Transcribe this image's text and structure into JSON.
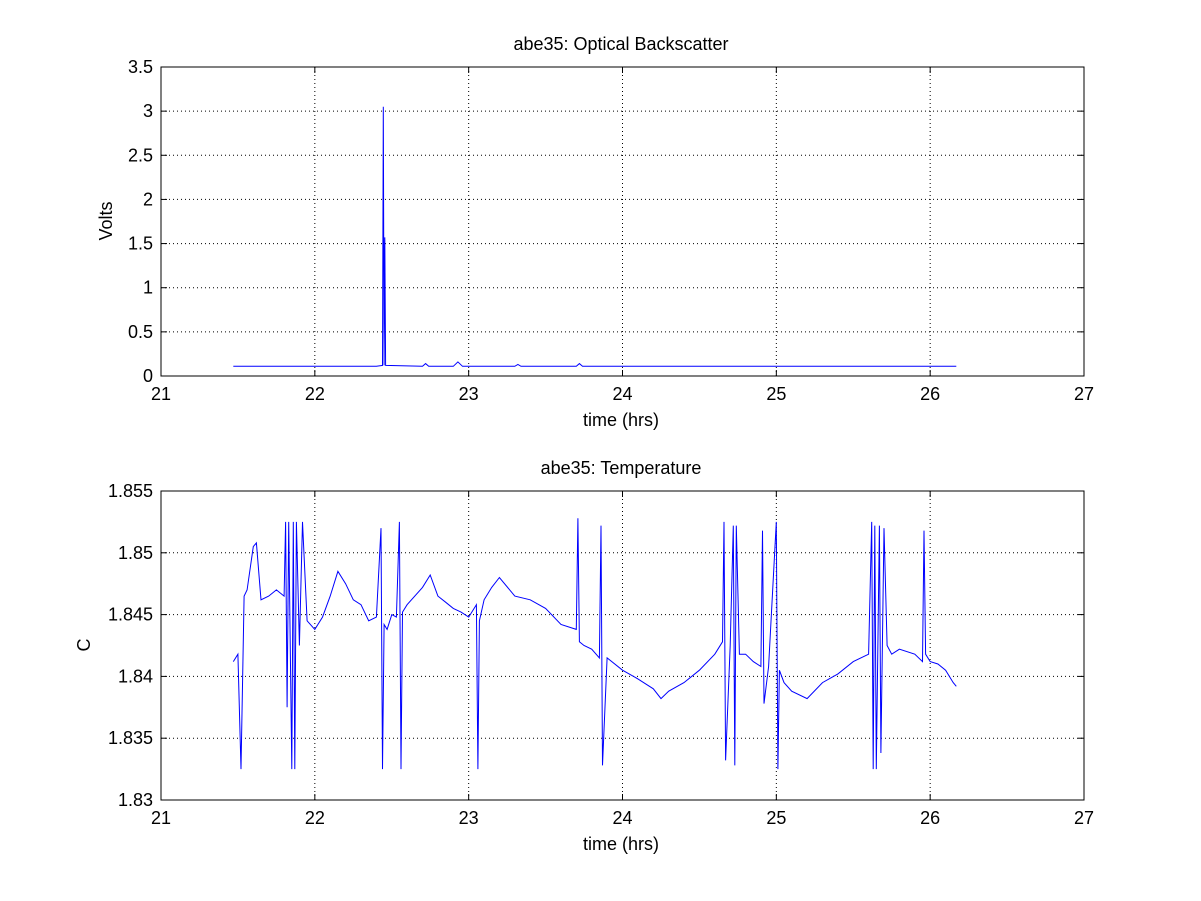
{
  "chart_data": [
    {
      "type": "line",
      "title": "abe35: Optical Backscatter",
      "xlabel": "time (hrs)",
      "ylabel": "Volts",
      "xlim": [
        21,
        27
      ],
      "ylim": [
        0,
        3.5
      ],
      "xticks": [
        "21",
        "22",
        "23",
        "24",
        "25",
        "26",
        "27"
      ],
      "yticks": [
        "0",
        "0.5",
        "1",
        "1.5",
        "2",
        "2.5",
        "3",
        "3.5"
      ],
      "grid": true,
      "line_color": "#0000ff",
      "series": [
        {
          "x": [
            21.47,
            21.8,
            22.1,
            22.4,
            22.44,
            22.445,
            22.45,
            22.455,
            22.46,
            22.7,
            22.72,
            22.74,
            22.9,
            22.93,
            22.96,
            23.3,
            23.32,
            23.34,
            23.7,
            23.72,
            23.74,
            24.2,
            24.7,
            25.2,
            25.7,
            26.17
          ],
          "y": [
            0.11,
            0.11,
            0.11,
            0.11,
            0.12,
            3.05,
            0.12,
            1.57,
            0.12,
            0.11,
            0.14,
            0.11,
            0.11,
            0.16,
            0.11,
            0.11,
            0.13,
            0.11,
            0.11,
            0.14,
            0.11,
            0.11,
            0.11,
            0.11,
            0.11,
            0.11
          ]
        }
      ]
    },
    {
      "type": "line",
      "title": "abe35: Temperature",
      "xlabel": "time (hrs)",
      "ylabel": "C",
      "xlim": [
        21,
        27
      ],
      "ylim": [
        1.83,
        1.855
      ],
      "xticks": [
        "21",
        "22",
        "23",
        "24",
        "25",
        "26",
        "27"
      ],
      "yticks": [
        "1.83",
        "1.835",
        "1.84",
        "1.845",
        "1.85",
        "1.855"
      ],
      "grid": true,
      "line_color": "#0000ff",
      "series": [
        {
          "x": [
            21.47,
            21.5,
            21.52,
            21.54,
            21.56,
            21.6,
            21.62,
            21.65,
            21.7,
            21.75,
            21.8,
            21.81,
            21.82,
            21.83,
            21.85,
            21.86,
            21.87,
            21.88,
            21.9,
            21.92,
            21.95,
            22.0,
            22.05,
            22.1,
            22.15,
            22.2,
            22.25,
            22.3,
            22.35,
            22.4,
            22.43,
            22.44,
            22.45,
            22.47,
            22.5,
            22.53,
            22.55,
            22.56,
            22.57,
            22.6,
            22.7,
            22.75,
            22.8,
            22.85,
            22.9,
            22.95,
            23.0,
            23.05,
            23.06,
            23.07,
            23.1,
            23.15,
            23.2,
            23.3,
            23.4,
            23.5,
            23.6,
            23.7,
            23.71,
            23.72,
            23.75,
            23.8,
            23.85,
            23.86,
            23.87,
            23.9,
            24.0,
            24.1,
            24.2,
            24.25,
            24.3,
            24.4,
            24.5,
            24.6,
            24.65,
            24.66,
            24.67,
            24.7,
            24.72,
            24.73,
            24.74,
            24.76,
            24.8,
            24.85,
            24.9,
            24.91,
            24.92,
            24.95,
            25.0,
            25.01,
            25.02,
            25.05,
            25.1,
            25.2,
            25.3,
            25.4,
            25.5,
            25.6,
            25.62,
            25.63,
            25.64,
            25.65,
            25.67,
            25.68,
            25.7,
            25.72,
            25.75,
            25.8,
            25.9,
            25.95,
            25.96,
            25.97,
            26.0,
            26.05,
            26.1,
            26.15,
            26.17
          ],
          "y": [
            1.8412,
            1.8418,
            1.8325,
            1.8465,
            1.847,
            1.8505,
            1.8508,
            1.8462,
            1.8465,
            1.847,
            1.8465,
            1.8525,
            1.8375,
            1.8525,
            1.8325,
            1.8525,
            1.8325,
            1.8525,
            1.8425,
            1.8525,
            1.8445,
            1.8438,
            1.8448,
            1.8465,
            1.8485,
            1.8475,
            1.8462,
            1.8458,
            1.8445,
            1.8448,
            1.852,
            1.8325,
            1.8442,
            1.8438,
            1.845,
            1.8448,
            1.8525,
            1.8325,
            1.8452,
            1.8458,
            1.8472,
            1.8482,
            1.8465,
            1.846,
            1.8455,
            1.8452,
            1.8448,
            1.8458,
            1.8325,
            1.8445,
            1.8462,
            1.8472,
            1.848,
            1.8465,
            1.8462,
            1.8455,
            1.8442,
            1.8438,
            1.8528,
            1.8428,
            1.8425,
            1.8422,
            1.8415,
            1.8522,
            1.8328,
            1.8415,
            1.8405,
            1.8398,
            1.839,
            1.8382,
            1.8388,
            1.8395,
            1.8405,
            1.8418,
            1.8428,
            1.8525,
            1.8332,
            1.8425,
            1.8522,
            1.8328,
            1.8522,
            1.8418,
            1.8418,
            1.8412,
            1.8408,
            1.8518,
            1.8378,
            1.8408,
            1.8525,
            1.8325,
            1.8405,
            1.8395,
            1.8388,
            1.8382,
            1.8395,
            1.8402,
            1.8412,
            1.8418,
            1.8525,
            1.8325,
            1.8522,
            1.8325,
            1.8522,
            1.8338,
            1.852,
            1.8425,
            1.8418,
            1.8422,
            1.8418,
            1.8412,
            1.8518,
            1.8418,
            1.8412,
            1.841,
            1.8405,
            1.8395,
            1.8392
          ]
        }
      ]
    }
  ]
}
